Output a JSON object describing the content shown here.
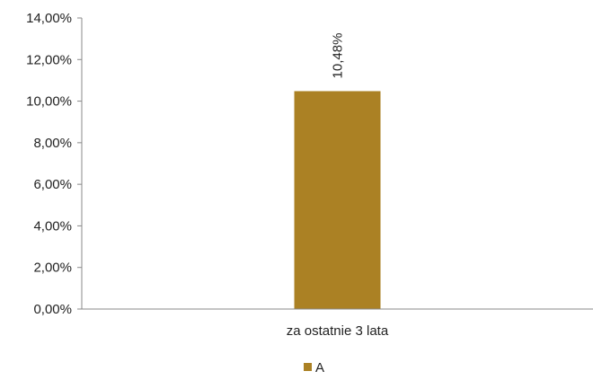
{
  "chart_data": {
    "type": "bar",
    "categories": [
      "za ostatnie 3 lata"
    ],
    "series": [
      {
        "name": "A",
        "values": [
          10.48
        ],
        "data_labels": [
          "10,48%"
        ],
        "color": "#ab8124"
      }
    ],
    "yticks": [
      0,
      2,
      4,
      6,
      8,
      10,
      12,
      14
    ],
    "ytick_labels": [
      "0,00%",
      "2,00%",
      "4,00%",
      "6,00%",
      "8,00%",
      "10,00%",
      "12,00%",
      "14,00%"
    ],
    "ylim": [
      0,
      14
    ],
    "grid": false,
    "legend": "bottom-center",
    "axis_color": "#888888",
    "text_color": "#222222"
  }
}
